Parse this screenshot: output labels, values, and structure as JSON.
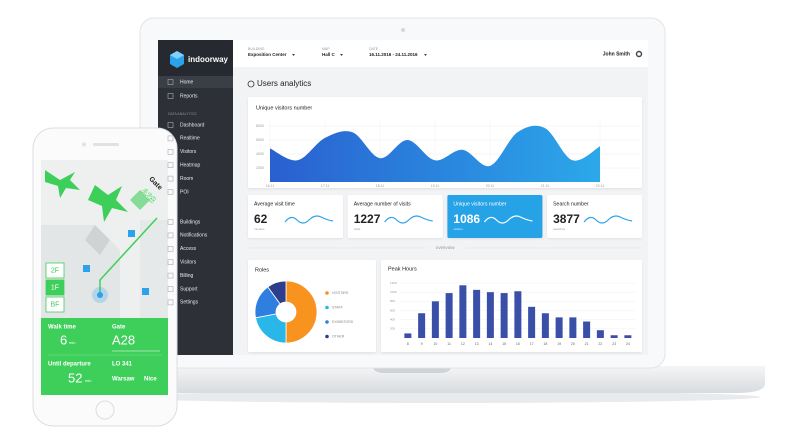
{
  "topbar": {
    "building_label": "BUILDING",
    "building": "Exposition Center",
    "map_label": "MAP",
    "map": "Hall C",
    "date_label": "DATE",
    "date": "16.11.2016 - 24.11.2016",
    "user": "John Smith"
  },
  "sidebar": {
    "brand": "indoorway",
    "main": [
      "Home",
      "Reports"
    ],
    "analytics_label": "DATA ANALYTICS",
    "analytics": [
      "Dashboard",
      "Realtime",
      "Visitors",
      "Heatmap",
      "Room",
      "POI"
    ],
    "admin": [
      "Buildings",
      "Notifications",
      "Access",
      "Visitors",
      "Billing",
      "Support",
      "Settings"
    ]
  },
  "page_title": "Users analytics",
  "stats": [
    {
      "label": "Average visit time",
      "value": "62",
      "unit": "minutes"
    },
    {
      "label": "Average number of visits",
      "value": "1227",
      "unit": "visits"
    },
    {
      "label": "Unique visitors number",
      "value": "1086",
      "unit": "visitors"
    },
    {
      "label": "Search number",
      "value": "3877",
      "unit": "searches"
    }
  ],
  "overview_label": "OVERVIEW",
  "chart_data": [
    {
      "type": "area",
      "title": "Unique visitors number",
      "categories": [
        "16.11",
        null,
        "17.11",
        null,
        "18.11",
        null,
        "19.11",
        null,
        "20.11",
        null,
        "21.11",
        null,
        "22.11"
      ],
      "values": [
        4800,
        3100,
        6300,
        7100,
        3400,
        6000,
        3100,
        4600,
        2300,
        7100,
        7700,
        3100,
        5100
      ],
      "colors": [
        "#2a5fd0",
        "#2ba8ea"
      ],
      "ylim": [
        0,
        9000
      ],
      "yticks": [
        2000,
        4000,
        6000,
        8000
      ],
      "grid": true
    },
    {
      "type": "pie",
      "title": "Roles",
      "categories": [
        "VISITORS",
        "STAFF",
        "EXHIBITORS",
        "OTHER"
      ],
      "values": [
        50,
        22,
        18,
        10
      ],
      "colors": [
        "#f7931e",
        "#29b6e8",
        "#2f7fe0",
        "#2c3e8c"
      ]
    },
    {
      "type": "bar",
      "title": "Peak Hours",
      "categories": [
        "8",
        "9",
        "10",
        "11",
        "12",
        "13",
        "14",
        "15",
        "16",
        "17",
        "18",
        "19",
        "20",
        "21",
        "22",
        "23",
        "24"
      ],
      "values": [
        100,
        540,
        800,
        980,
        1150,
        1050,
        1000,
        980,
        1020,
        680,
        540,
        450,
        450,
        360,
        170,
        60,
        60
      ],
      "color": "#3a4fa8",
      "ylim": [
        0,
        1200
      ],
      "yticks": [
        200,
        400,
        600,
        800,
        1000,
        1200
      ],
      "grid": true
    }
  ],
  "phone": {
    "map_label": "Gate",
    "map_gate": "A28",
    "floors": [
      "2F",
      "1F",
      "BF"
    ],
    "walk_label": "Walk time",
    "walk_value": "6",
    "walk_unit": "min",
    "gate_label": "Gate",
    "gate_value": "A28",
    "departure_label": "Until departure",
    "departure_value": "52",
    "departure_unit": "min",
    "flight": "LO 341",
    "from": "Warsaw",
    "to": "Nice"
  }
}
